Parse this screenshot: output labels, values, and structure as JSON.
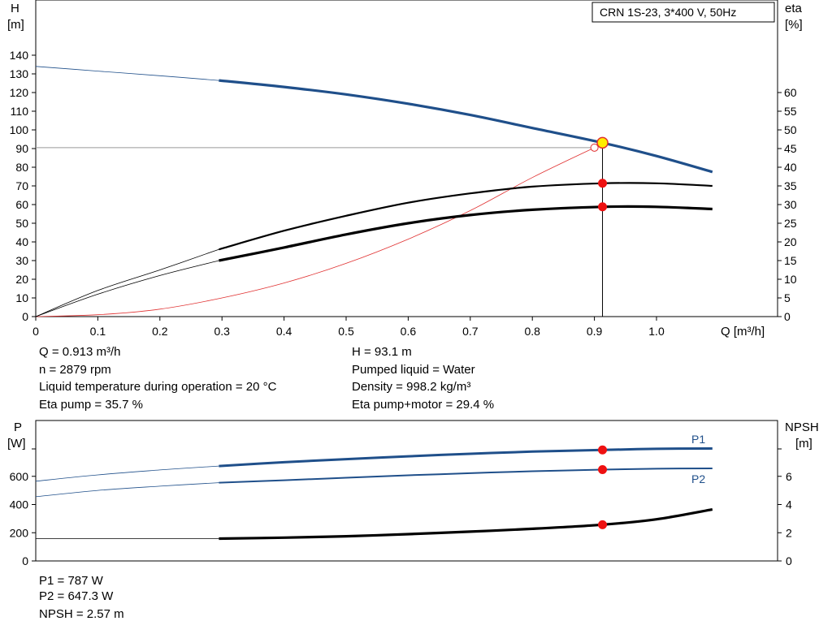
{
  "chart_data": [
    {
      "type": "line",
      "title": "CRN 1S-23, 3*400 V, 50Hz",
      "xlabel": "Q [m³/h]",
      "ylabel_left": [
        "H",
        "[m]"
      ],
      "ylabel_right": [
        "eta",
        "[%]"
      ],
      "xlim": [
        0,
        1.1
      ],
      "ylim_left": [
        0,
        150
      ],
      "ylim_right": [
        0,
        75
      ],
      "x_ticks": [
        "0",
        "0.1",
        "0.2",
        "0.3",
        "0.4",
        "0.5",
        "0.6",
        "0.7",
        "0.8",
        "0.9",
        "1.0"
      ],
      "y_ticks_left": [
        "0",
        "10",
        "20",
        "30",
        "40",
        "50",
        "60",
        "70",
        "80",
        "90",
        "100",
        "110",
        "120",
        "130",
        "140"
      ],
      "y_ticks_right": [
        "0",
        "5",
        "10",
        "15",
        "20",
        "25",
        "30",
        "35",
        "40",
        "45",
        "50",
        "55",
        "60"
      ],
      "grid": false,
      "series": [
        {
          "key": "H",
          "axis": "left",
          "color": "#1f4f8a",
          "x": [
            0,
            0.1,
            0.2,
            0.295,
            0.4,
            0.5,
            0.6,
            0.7,
            0.8,
            0.913,
            1.0,
            1.09
          ],
          "y": [
            134,
            131.5,
            129,
            126.5,
            123,
            119,
            114,
            108,
            101,
            93.1,
            86,
            77.5
          ]
        },
        {
          "key": "eta_pump",
          "axis": "right",
          "color": "#000000",
          "x": [
            0,
            0.1,
            0.2,
            0.295,
            0.4,
            0.5,
            0.6,
            0.7,
            0.8,
            0.913,
            1.0,
            1.09
          ],
          "y": [
            0,
            7,
            12.5,
            18,
            23,
            27,
            30.5,
            33,
            34.8,
            35.7,
            35.7,
            35
          ]
        },
        {
          "key": "eta_pump_motor",
          "axis": "right",
          "color": "#000000",
          "x": [
            0,
            0.1,
            0.2,
            0.295,
            0.4,
            0.5,
            0.6,
            0.7,
            0.8,
            0.913,
            1.0,
            1.09
          ],
          "y": [
            0,
            6,
            11,
            15,
            18.5,
            22,
            25,
            27.2,
            28.6,
            29.4,
            29.4,
            28.8
          ]
        },
        {
          "key": "system",
          "axis": "left",
          "color": "#e03030",
          "x": [
            0,
            0.1,
            0.2,
            0.3,
            0.4,
            0.5,
            0.6,
            0.7,
            0.8,
            0.9
          ],
          "y": [
            0,
            1,
            4,
            10,
            18,
            28.5,
            41.5,
            56.8,
            74.5,
            90.5
          ]
        }
      ],
      "duty_point": {
        "Q": 0.913,
        "H": 93.1,
        "eta_pump": 35.7,
        "eta_pump_motor": 29.4,
        "system_H": 90.5
      },
      "reference_line_H": 90.5
    },
    {
      "type": "line",
      "ylabel_left": [
        "P",
        "[W]"
      ],
      "ylabel_right": [
        "NPSH",
        "[m]"
      ],
      "xlim": [
        0,
        1.1
      ],
      "ylim_left": [
        0,
        800
      ],
      "ylim_right": [
        0,
        8
      ],
      "y_ticks_left": [
        "0",
        "200",
        "400",
        "600"
      ],
      "y_ticks_right": [
        "0",
        "2",
        "4",
        "6"
      ],
      "series": [
        {
          "name": "P1",
          "axis": "left",
          "color": "#1f4f8a",
          "x": [
            0,
            0.1,
            0.2,
            0.295,
            0.4,
            0.5,
            0.6,
            0.7,
            0.8,
            0.913,
            1.0,
            1.09
          ],
          "y": [
            565,
            610,
            645,
            673,
            700,
            722,
            742,
            760,
            775,
            787,
            795,
            797
          ]
        },
        {
          "name": "P2",
          "axis": "left",
          "color": "#1f4f8a",
          "x": [
            0,
            0.1,
            0.2,
            0.295,
            0.4,
            0.5,
            0.6,
            0.7,
            0.8,
            0.913,
            1.0,
            1.09
          ],
          "y": [
            455,
            500,
            530,
            555,
            572,
            590,
            607,
            622,
            636,
            647.3,
            654,
            656
          ]
        },
        {
          "key": "NPSH",
          "axis": "right",
          "color": "#000000",
          "x": [
            0,
            0.1,
            0.2,
            0.295,
            0.4,
            0.5,
            0.6,
            0.7,
            0.8,
            0.913,
            1.0,
            1.09
          ],
          "y": [
            1.58,
            1.58,
            1.58,
            1.58,
            1.65,
            1.75,
            1.9,
            2.08,
            2.28,
            2.57,
            2.95,
            3.65
          ]
        }
      ],
      "duty_point": {
        "Q": 0.913,
        "P1": 787,
        "P2": 647.3,
        "NPSH": 2.57
      }
    }
  ],
  "info_top": {
    "q": "Q = 0.913 m³/h",
    "n": "n = 2879 rpm",
    "temp": "Liquid temperature during operation = 20 °C",
    "eta_pump": "Eta pump = 35.7 %",
    "h": "H = 93.1 m",
    "liquid": "Pumped liquid = Water",
    "density": "Density = 998.2 kg/m³",
    "eta_pm": "Eta pump+motor = 29.4 %"
  },
  "info_bottom": {
    "p1": "P1 = 787 W",
    "p2": "P2 = 647.3 W",
    "npsh": "NPSH = 2.57 m"
  }
}
